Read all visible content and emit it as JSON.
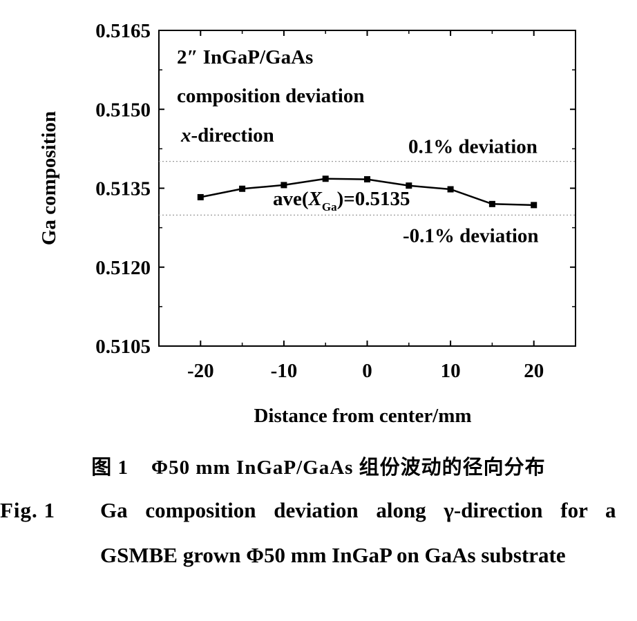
{
  "chart_data": {
    "type": "line",
    "x": [
      -20,
      -15,
      -10,
      -5,
      0,
      5,
      10,
      15,
      20
    ],
    "series": [
      {
        "values": [
          0.51333,
          0.51349,
          0.51356,
          0.51368,
          0.51367,
          0.51355,
          0.51348,
          0.5132,
          0.51318
        ]
      }
    ],
    "xlabel": "Distance from  center/mm",
    "ylabel": "Ga composition",
    "xlim": [
      -25,
      25
    ],
    "ylim": [
      0.5105,
      0.5165
    ],
    "xticks": [
      -20,
      -10,
      0,
      10,
      20
    ],
    "xtick_labels": [
      "-20",
      "-10",
      "0",
      "10",
      "20"
    ],
    "yticks": [
      0.5105,
      0.512,
      0.5135,
      0.515,
      0.5165
    ],
    "ytick_labels": [
      "0.5105",
      "0.5120",
      "0.5135",
      "0.5150",
      "0.5165"
    ],
    "reference_lines": [
      {
        "y": 0.51401,
        "label": "0.1% deviation"
      },
      {
        "y": 0.51299,
        "label": "-0.1% deviation"
      }
    ],
    "annotations": {
      "line1": "2″ InGaP/GaAs",
      "line2": "composition deviation",
      "line3_italic": "x",
      "line3_rest": "-direction",
      "average_prefix": "ave(",
      "average_var": "X",
      "average_sub": "Ga",
      "average_suffix": ")=0.5135"
    },
    "grid": false,
    "legend": "none",
    "line_color": "#000000",
    "reference_line_color": "#999999"
  },
  "caption": {
    "chinese": "图 1    Φ50 mm InGaP/GaAs 组份波动的径向分布",
    "fig_label": "Fig. 1",
    "english_line1": "Ga composition deviation along γ-direction for a",
    "english_line2": "GSMBE grown Φ50 mm InGaP on GaAs substrate"
  }
}
